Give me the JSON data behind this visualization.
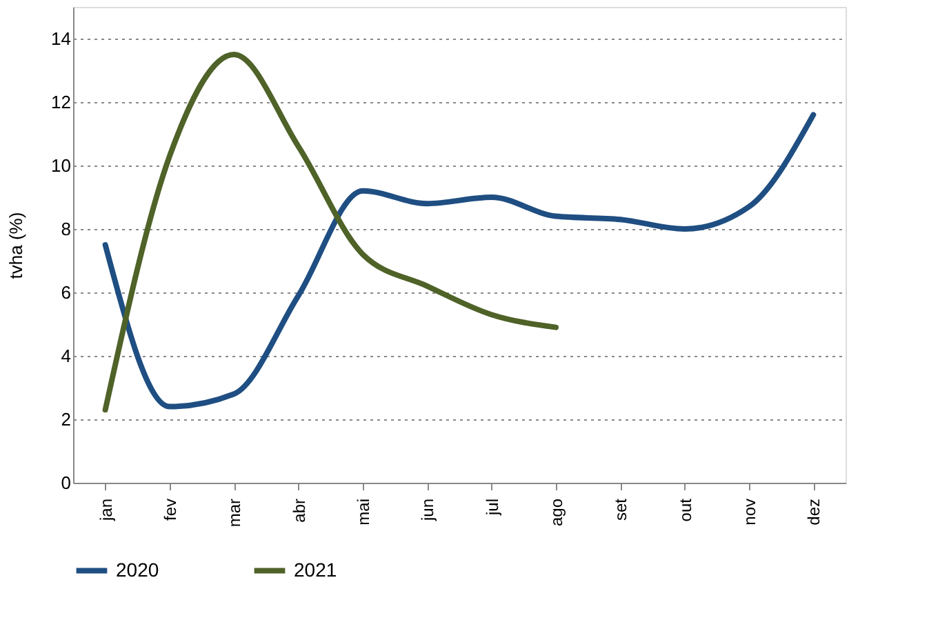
{
  "chart_data": {
    "type": "line",
    "ylabel": "tvha (%)",
    "categories": [
      "jan",
      "fev",
      "mar",
      "abr",
      "mai",
      "jun",
      "jul",
      "ago",
      "set",
      "out",
      "nov",
      "dez"
    ],
    "series": [
      {
        "name": "2020",
        "color": "#1f4e82",
        "values": [
          7.5,
          2.4,
          2.8,
          5.9,
          9.2,
          8.8,
          9.0,
          8.4,
          8.3,
          8.0,
          8.7,
          11.6
        ]
      },
      {
        "name": "2021",
        "color": "#4f6228",
        "values": [
          2.3,
          10.3,
          13.5,
          10.6,
          7.2,
          6.2,
          5.3,
          4.9,
          null,
          null,
          null,
          null
        ]
      }
    ],
    "ylim": [
      0,
      15
    ],
    "yticks": [
      0,
      2,
      4,
      6,
      8,
      10,
      12,
      14
    ],
    "grid": "y",
    "legend": "bottom",
    "marker": "none",
    "line_style": "solid"
  }
}
